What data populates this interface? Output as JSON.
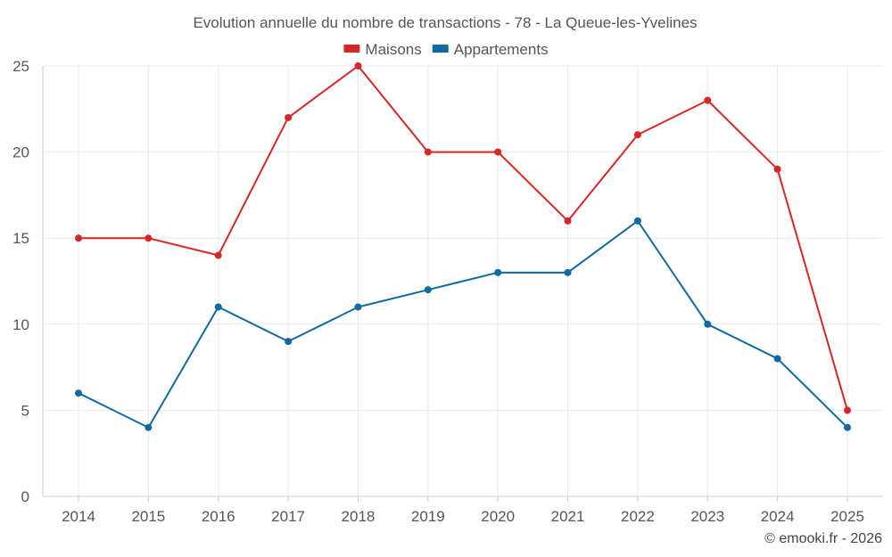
{
  "chart_data": {
    "type": "line",
    "title": "Evolution annuelle du nombre de transactions - 78 - La Queue-les-Yvelines",
    "categories": [
      "2014",
      "2015",
      "2016",
      "2017",
      "2018",
      "2019",
      "2020",
      "2021",
      "2022",
      "2023",
      "2024",
      "2025"
    ],
    "series": [
      {
        "name": "Maisons",
        "color": "#d62728",
        "values": [
          15,
          15,
          14,
          22,
          25,
          20,
          20,
          16,
          21,
          23,
          19,
          5
        ]
      },
      {
        "name": "Appartements",
        "color": "#0e6aa0",
        "values": [
          6,
          4,
          11,
          9,
          11,
          12,
          13,
          13,
          16,
          10,
          8,
          4
        ]
      }
    ],
    "ylim": [
      0,
      25
    ],
    "yticks": [
      0,
      5,
      10,
      15,
      20,
      25
    ],
    "xlabel": "",
    "ylabel": "",
    "grid": true,
    "legend_position": "top-center"
  },
  "credit": "© emooki.fr - 2026"
}
